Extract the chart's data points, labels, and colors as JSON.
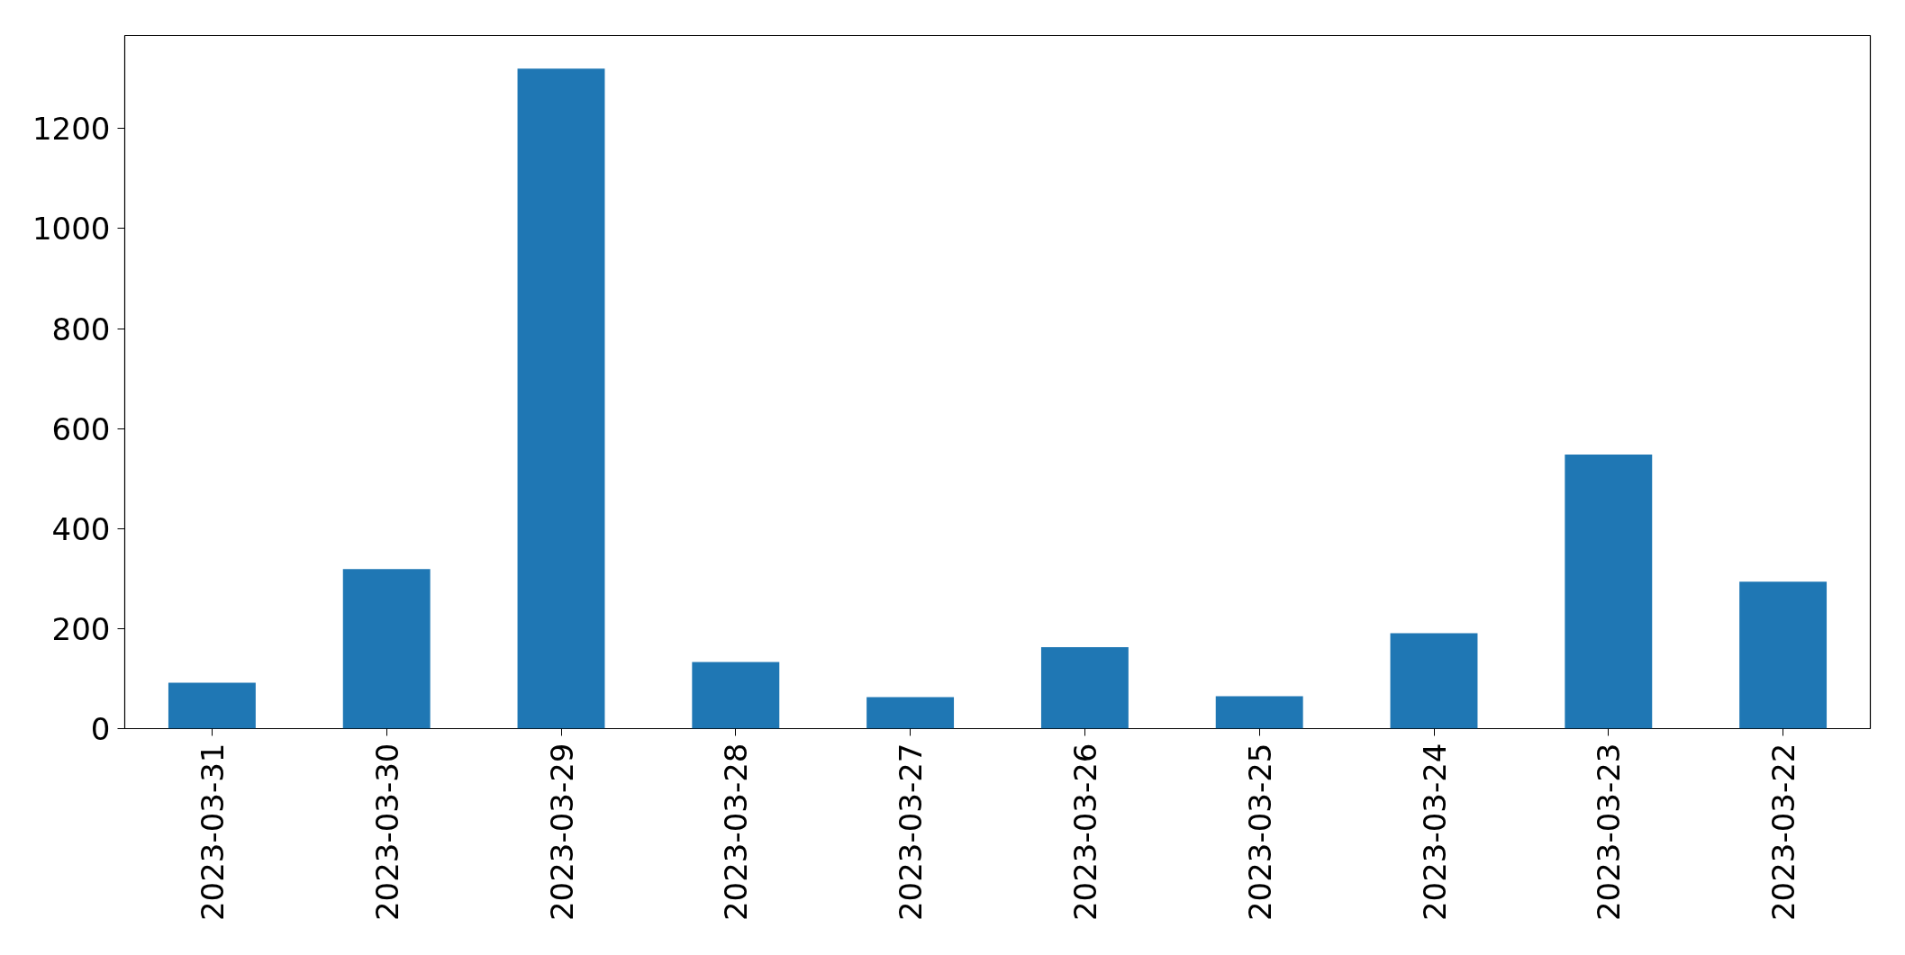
{
  "chart_data": {
    "type": "bar",
    "categories": [
      "2023-03-31",
      "2023-03-30",
      "2023-03-29",
      "2023-03-28",
      "2023-03-27",
      "2023-03-26",
      "2023-03-25",
      "2023-03-24",
      "2023-03-23",
      "2023-03-22"
    ],
    "values": [
      92,
      319,
      1320,
      133,
      63,
      163,
      65,
      191,
      548,
      294
    ],
    "color": "#1f77b4",
    "ylim": [
      0,
      1386
    ],
    "yticks": [
      0,
      200,
      400,
      600,
      800,
      1000,
      1200
    ],
    "grid": false
  }
}
